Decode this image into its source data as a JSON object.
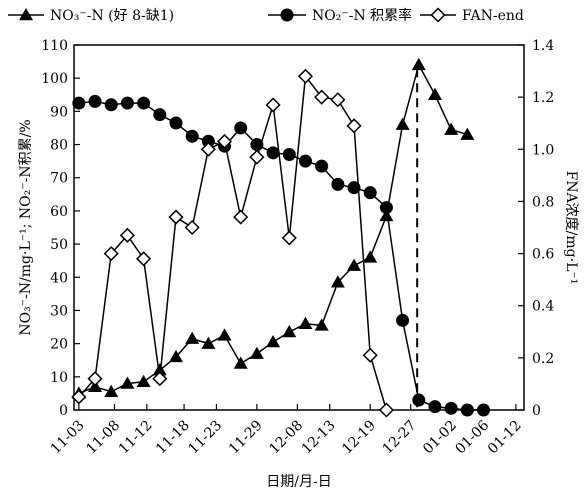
{
  "chart_data": {
    "type": "line",
    "xlabel": "日期/月-日",
    "ylabel_left": "NO₃⁻-N/mg·L⁻¹; NO₂⁻-N积累/%",
    "ylabel_right": "FNA浓度/mg·L⁻¹",
    "ylim_left": [
      0,
      110
    ],
    "ylim_right": [
      0,
      1.4
    ],
    "yticks_left": [
      "0",
      "10",
      "20",
      "30",
      "40",
      "50",
      "60",
      "70",
      "80",
      "90",
      "100",
      "110"
    ],
    "yticks_right": [
      "0",
      "0.2",
      "0.4",
      "0.6",
      "0.8",
      "1.0",
      "1.2",
      "1.4"
    ],
    "xticks": [
      "11-03",
      "11-08",
      "11-12",
      "11-18",
      "11-23",
      "11-29",
      "12-08",
      "12-13",
      "12-19",
      "12-27",
      "01-02",
      "01-06",
      "01-12"
    ],
    "xtick_index": [
      0,
      2.2,
      4.2,
      6.5,
      8.5,
      11,
      13.5,
      15.5,
      18,
      20.5,
      23,
      25,
      27
    ],
    "x_range": [
      -0.3,
      27.5
    ],
    "vline_x": 20.9,
    "grid": false,
    "legend_position": "top",
    "series": [
      {
        "name": "NO₃⁻-N (好 8-缺1)",
        "marker": "triangle",
        "axis": "left",
        "x": [
          0,
          1,
          2,
          3,
          4,
          5,
          6,
          7,
          8,
          9,
          10,
          11,
          12,
          13,
          14,
          15,
          16,
          17,
          18,
          19,
          20,
          21,
          22,
          23,
          24,
          25,
          26,
          27
        ],
        "values": [
          5,
          7,
          5.5,
          8,
          8.5,
          12,
          16,
          21.5,
          20,
          22.5,
          14,
          17,
          20.5,
          23.5,
          26,
          25.5,
          38.5,
          43.5,
          46,
          58.5,
          86,
          104,
          95,
          84.5,
          83,
          null,
          null,
          null
        ]
      },
      {
        "name": "NO₂⁻-N 积累率",
        "marker": "circle",
        "axis": "left",
        "x": [
          0,
          1,
          2,
          3,
          4,
          5,
          6,
          7,
          8,
          9,
          10,
          11,
          12,
          13,
          14,
          15,
          16,
          17,
          18,
          19,
          20,
          21,
          22,
          23,
          24,
          25,
          26,
          27
        ],
        "values": [
          92.5,
          93,
          92,
          92.5,
          92.5,
          89,
          86.5,
          82.5,
          81,
          79.5,
          85,
          80,
          77.5,
          77,
          75,
          73.5,
          68,
          67,
          65.5,
          61,
          27,
          3,
          1,
          0.5,
          0,
          0,
          null,
          null
        ]
      },
      {
        "name": "FAN-end",
        "marker": "diamond",
        "axis": "right",
        "x": [
          0,
          1,
          2,
          3,
          4,
          5,
          6,
          7,
          8,
          9,
          10,
          11,
          12,
          13,
          14,
          15,
          16,
          17,
          18,
          19,
          20,
          21,
          22,
          23,
          24,
          25,
          26,
          27
        ],
        "values": [
          0.05,
          0.12,
          0.6,
          0.67,
          0.58,
          0.12,
          0.74,
          0.7,
          1.0,
          1.03,
          0.74,
          0.97,
          1.17,
          0.66,
          1.28,
          1.2,
          1.19,
          1.09,
          0.21,
          0,
          null,
          null,
          null,
          null,
          null,
          null,
          null,
          null
        ]
      }
    ]
  }
}
